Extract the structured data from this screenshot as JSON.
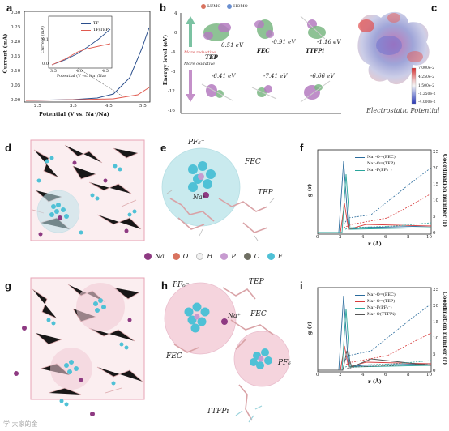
{
  "panels": {
    "a": {
      "label": "a",
      "xlabel": "Potential (V vs. Na⁺/Na)",
      "ylabel": "Current (mA)",
      "xticks": [
        "2.5",
        "3.5",
        "4.5",
        "5.5"
      ],
      "yticks": [
        "0.00",
        "0.05",
        "0.10",
        "0.15",
        "0.20",
        "0.25",
        "0.30"
      ],
      "legend": [
        "TF",
        "TF/TFPi"
      ],
      "inset": {
        "xlabel": "Potential (V vs. Na⁺/Na)",
        "ylabel": "Current (mA)",
        "xticks": [
          "3.5",
          "4.0",
          "4.5"
        ],
        "yticks": [
          "0.0",
          "0.1"
        ]
      }
    },
    "b": {
      "label": "b",
      "ylabel": "Energy level (eV)",
      "yticks": [
        "4",
        "0",
        "-4",
        "-8",
        "-12",
        "-16"
      ],
      "legend_lumo": "LUMO",
      "legend_homo": "HOMO",
      "more_reductive": "More reductive",
      "more_oxidative": "More oxidative",
      "molecules": [
        {
          "name": "TEP",
          "lumo": "0.51 eV",
          "homo": "-6.41 eV"
        },
        {
          "name": "FEC",
          "lumo": "-0.91 eV",
          "homo": "-7.41 eV"
        },
        {
          "name": "TTFPi",
          "lumo": "-1.16 eV",
          "homo": "-6.66 eV"
        }
      ]
    },
    "c": {
      "label": "c",
      "colorbar": [
        "7.000e-2",
        "4.250e-2",
        "1.500e-2",
        "-1.250e-2",
        "-4.000e-2"
      ],
      "caption": "Electrostatic Potential"
    },
    "d": {
      "label": "d"
    },
    "e": {
      "label": "e",
      "labels": {
        "pf6": "PF₆⁻",
        "fec": "FEC",
        "na": "Na⁺",
        "tep": "TEP"
      }
    },
    "f": {
      "label": "f",
      "xlabel": "r (Å)",
      "ylabel": "g (r)",
      "ylabel2": "Coordination number (r)",
      "xticks": [
        "0",
        "2",
        "4",
        "6",
        "8",
        "10"
      ],
      "yticks_right": [
        "0",
        "5",
        "10",
        "15",
        "20",
        "25"
      ],
      "legend": [
        "Na⁺-O=(FEC)",
        "Na⁺-O=(TEP)",
        "Na⁺-F(PF₆⁻)"
      ]
    },
    "g": {
      "label": "g"
    },
    "h": {
      "label": "h",
      "labels": {
        "pf6a": "PF₆⁻",
        "tep": "TEP",
        "na": "Na⁺",
        "fec1": "FEC",
        "fec2": "FEC",
        "pf6b": "PF₆⁻",
        "ttfpi": "TTFPi"
      }
    },
    "i": {
      "label": "i",
      "xlabel": "r (Å)",
      "ylabel": "g (r)",
      "ylabel2": "Coordination number (r)",
      "xticks": [
        "0",
        "2",
        "4",
        "6",
        "8",
        "10"
      ],
      "yticks_right": [
        "0",
        "5",
        "10",
        "15",
        "20",
        "25"
      ],
      "legend": [
        "Na⁺-O=(FEC)",
        "Na⁺-O=(TEP)",
        "Na⁺-F(PF₆⁻)",
        "Na⁺-O(TTFPi)"
      ]
    }
  },
  "atom_legend": [
    {
      "symbol": "Na",
      "color": "#8e3a82"
    },
    {
      "symbol": "O",
      "color": "#d9735f"
    },
    {
      "symbol": "H",
      "color": "#f2f2f2"
    },
    {
      "symbol": "P",
      "color": "#c79bd0"
    },
    {
      "symbol": "C",
      "color": "#6f6f63"
    },
    {
      "symbol": "F",
      "color": "#4fc1d6"
    }
  ],
  "colors": {
    "tf": "#2a4e8c",
    "tfpi": "#e05a4f",
    "fec": "#2a6b9c",
    "tep": "#d83b3b",
    "pf6": "#2aa59b",
    "ttfpi": "#555555",
    "pink": "#e7a3b5",
    "cyan": "#6cc6d6"
  },
  "watermark": "学 大家的金"
}
